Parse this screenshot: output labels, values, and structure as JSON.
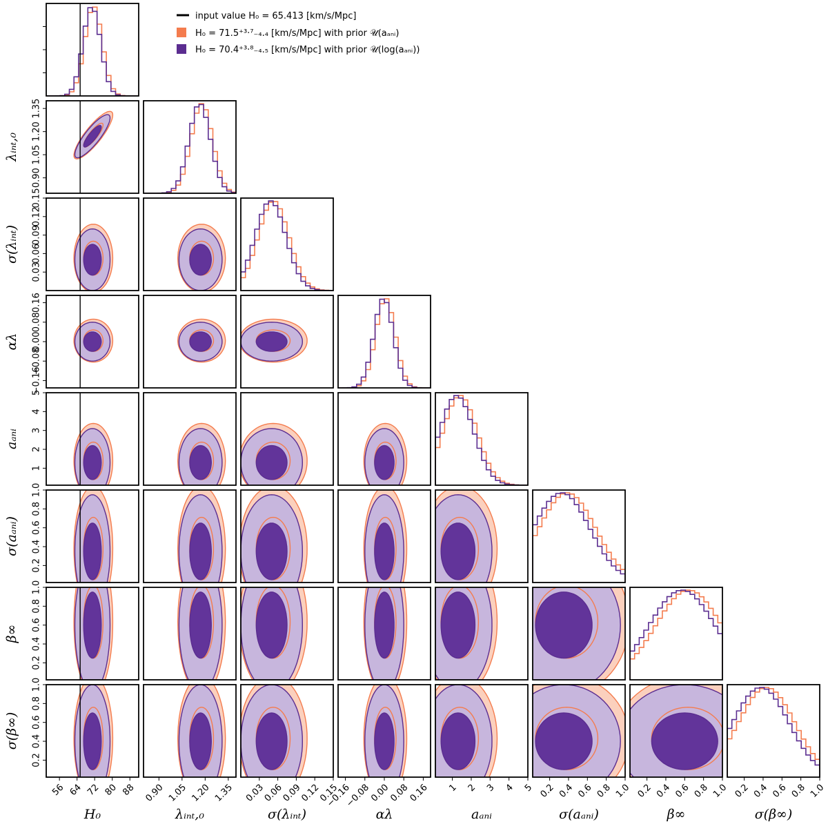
{
  "chart_data": {
    "type": "corner",
    "parameters": [
      {
        "key": "H0",
        "label": "H₀",
        "range": [
          50,
          92
        ],
        "ticks": [
          56,
          64,
          72,
          80,
          88
        ],
        "tick_labels": [
          "56",
          "64",
          "72",
          "80",
          "88"
        ],
        "mean": 71.0,
        "sd": 4.0
      },
      {
        "key": "lambda_int0",
        "label": "λᵢₙₜ,₀",
        "range": [
          0.8,
          1.4
        ],
        "ticks": [
          0.9,
          1.05,
          1.2,
          1.35
        ],
        "tick_labels": [
          "0.90",
          "1.05",
          "1.20",
          "1.35"
        ],
        "mean": 1.17,
        "sd": 0.07
      },
      {
        "key": "sigma_lambda_int",
        "label": "σ(λᵢₙₜ)",
        "range": [
          0.0,
          0.15
        ],
        "ticks": [
          0.03,
          0.06,
          0.09,
          0.12,
          0.15
        ],
        "tick_labels": [
          "0.03",
          "0.06",
          "0.09",
          "0.12",
          "0.15"
        ],
        "mean": 0.05,
        "sd": 0.025
      },
      {
        "key": "alpha_lambda",
        "label": "αλ",
        "range": [
          -0.19,
          0.19
        ],
        "ticks": [
          -0.16,
          -0.08,
          0.0,
          0.08,
          0.16
        ],
        "tick_labels": [
          "−0.16",
          "−0.08",
          "0.00",
          "0.08",
          "0.16"
        ],
        "mean": 0.0,
        "sd": 0.04
      },
      {
        "key": "a_ani",
        "label": "aₐₙᵢ",
        "range": [
          0.1,
          5.0
        ],
        "ticks": [
          1,
          2,
          3,
          4,
          5
        ],
        "tick_labels": [
          "1",
          "2",
          "3",
          "4",
          "5"
        ],
        "mean": 1.3,
        "sd": 0.9
      },
      {
        "key": "sigma_a_ani",
        "label": "σ(aₐₙᵢ)",
        "range": [
          0.02,
          1.0
        ],
        "ticks": [
          0.2,
          0.4,
          0.6,
          0.8,
          1.0
        ],
        "tick_labels": [
          "0.2",
          "0.4",
          "0.6",
          "0.8",
          "1.0"
        ],
        "mean": 0.35,
        "sd": 0.3
      },
      {
        "key": "beta_inf",
        "label": "β∞",
        "range": [
          0.02,
          1.0
        ],
        "ticks": [
          0.2,
          0.4,
          0.6,
          0.8,
          1.0
        ],
        "tick_labels": [
          "0.2",
          "0.4",
          "0.6",
          "0.8",
          "1.0"
        ],
        "mean": 0.6,
        "sd": 0.35
      },
      {
        "key": "sigma_beta_inf",
        "label": "σ(β∞)",
        "range": [
          0.02,
          1.0
        ],
        "ticks": [
          0.2,
          0.4,
          0.6,
          0.8,
          1.0
        ],
        "tick_labels": [
          "0.2",
          "0.4",
          "0.6",
          "0.8",
          "1.0"
        ],
        "mean": 0.4,
        "sd": 0.3
      }
    ],
    "truth": {
      "parameter": "H0",
      "value": 65.413
    },
    "series": [
      {
        "name": "H₀ = 71.5 (+3.7 / −4.4) [km/s/Mpc] with prior 𝒰(aₐₙᵢ)",
        "color": "#f47c4e",
        "fill_outer": "#fbd0bd",
        "fill_inner": "#f6916a",
        "prior": "uniform_a_ani"
      },
      {
        "name": "H₀ = 70.4 (+3.8 / −4.5) [km/s/Mpc] with prior 𝒰(log(aₐₙᵢ))",
        "color": "#5b2d90",
        "fill_outer": "#c7b6dd",
        "fill_inner": "#62349a",
        "prior": "uniform_log_a_ani"
      }
    ],
    "correlations": {
      "H0|lambda_int0": 0.85
    },
    "legend": {
      "position": "top-center"
    },
    "grid": false
  },
  "legend_items": [
    {
      "text": "input value H₀ =  65.413 [km/s/Mpc]"
    },
    {
      "text": "H₀ = 71.5⁺³·⁷₋₄.₄ [km/s/Mpc] with prior 𝒰(aₐₙᵢ)"
    },
    {
      "text": "H₀ = 70.4⁺³·⁸₋₄.₅ [km/s/Mpc] with prior 𝒰(log(aₐₙᵢ))"
    }
  ]
}
